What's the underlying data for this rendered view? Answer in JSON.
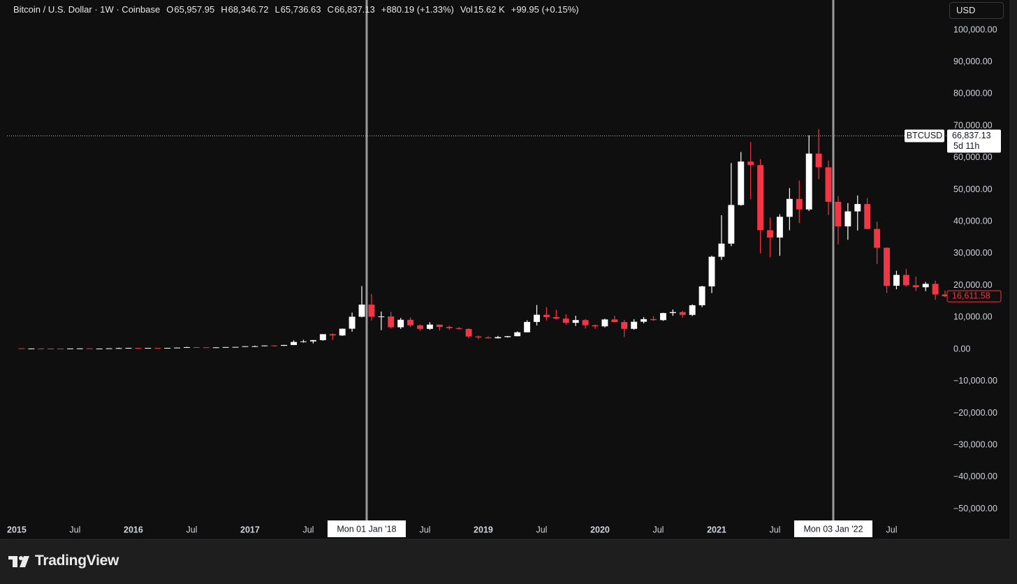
{
  "legend": {
    "symbol": "Bitcoin / U.S. Dollar · 1W · Coinbase",
    "items": [
      {
        "key": "O",
        "value": "65,957.95"
      },
      {
        "key": "H",
        "value": "68,346.72"
      },
      {
        "key": "L",
        "value": "65,736.63"
      },
      {
        "key": "C",
        "value": "66,837.13"
      }
    ],
    "change": "+880.19 (+1.33%)",
    "volume_key": "Vol",
    "volume": "15.62 K",
    "volume_change": "+99.95 (+0.15%)"
  },
  "currency_button": "USD",
  "footer": {
    "brand": "TradingView"
  },
  "chart_data": {
    "type": "candlestick",
    "x": [
      "2015-01",
      "2015-02",
      "2015-03",
      "2015-04",
      "2015-05",
      "2015-06",
      "2015-07",
      "2015-08",
      "2015-09",
      "2015-10",
      "2015-11",
      "2015-12",
      "2016-01",
      "2016-02",
      "2016-03",
      "2016-04",
      "2016-05",
      "2016-06",
      "2016-07",
      "2016-08",
      "2016-09",
      "2016-10",
      "2016-11",
      "2016-12",
      "2017-01",
      "2017-02",
      "2017-03",
      "2017-04",
      "2017-05",
      "2017-06",
      "2017-07",
      "2017-08",
      "2017-09",
      "2017-10",
      "2017-11",
      "2017-12",
      "2018-01",
      "2018-02",
      "2018-03",
      "2018-04",
      "2018-05",
      "2018-06",
      "2018-07",
      "2018-08",
      "2018-09",
      "2018-10",
      "2018-11",
      "2018-12",
      "2019-01",
      "2019-02",
      "2019-03",
      "2019-04",
      "2019-05",
      "2019-06",
      "2019-07",
      "2019-08",
      "2019-09",
      "2019-10",
      "2019-11",
      "2019-12",
      "2020-01",
      "2020-02",
      "2020-03",
      "2020-04",
      "2020-05",
      "2020-06",
      "2020-07",
      "2020-08",
      "2020-09",
      "2020-10",
      "2020-11",
      "2020-12",
      "2021-01",
      "2021-02",
      "2021-03",
      "2021-04",
      "2021-05",
      "2021-06",
      "2021-07",
      "2021-08",
      "2021-09",
      "2021-10",
      "2021-11",
      "2021-12",
      "2022-01",
      "2022-02",
      "2022-03",
      "2022-04",
      "2022-05",
      "2022-06",
      "2022-07",
      "2022-08",
      "2022-09",
      "2022-10",
      "2022-11",
      "2022-12"
    ],
    "open": [
      320,
      217,
      254,
      244,
      236,
      230,
      263,
      284,
      230,
      236,
      314,
      377,
      430,
      368,
      437,
      416,
      448,
      531,
      673,
      624,
      575,
      609,
      698,
      742,
      963,
      970,
      1190,
      1080,
      1350,
      2300,
      2480,
      2875,
      4740,
      4340,
      6450,
      10200,
      14000,
      10200,
      10300,
      6900,
      9250,
      7500,
      6400,
      7730,
      7010,
      6630,
      6370,
      4020,
      3740,
      3460,
      3820,
      4110,
      5330,
      8570,
      10820,
      10090,
      9620,
      8300,
      9150,
      7540,
      7190,
      9350,
      8540,
      6410,
      8630,
      9450,
      9140,
      11350,
      11660,
      10780,
      13800,
      19700,
      28990,
      33100,
      45200,
      58800,
      57700,
      37300,
      35000,
      41500,
      47100,
      43800,
      61300,
      57000,
      46200,
      38500,
      43200,
      45500,
      37700,
      31800,
      19900,
      23300,
      20050,
      19430,
      20500,
      17170
    ],
    "high": [
      330,
      270,
      300,
      260,
      250,
      265,
      320,
      285,
      245,
      330,
      500,
      465,
      460,
      440,
      440,
      470,
      550,
      780,
      700,
      620,
      620,
      720,
      760,
      980,
      1150,
      1200,
      1300,
      1380,
      2800,
      3000,
      2950,
      4700,
      5000,
      6500,
      11500,
      19800,
      17300,
      11800,
      11700,
      9800,
      10000,
      7800,
      8500,
      7760,
      7400,
      7000,
      6600,
      4300,
      4100,
      4200,
      4150,
      5600,
      9100,
      13880,
      13200,
      12350,
      10950,
      10500,
      9500,
      7750,
      9600,
      10500,
      9200,
      9450,
      10100,
      10380,
      11450,
      12480,
      12070,
      14100,
      19900,
      29300,
      41990,
      58350,
      61800,
      64900,
      59600,
      41300,
      42300,
      50500,
      52900,
      67000,
      69000,
      59100,
      48000,
      45800,
      48200,
      47400,
      40000,
      31950,
      24600,
      25200,
      22800,
      21100,
      21500,
      18400
    ],
    "low": [
      170,
      210,
      240,
      210,
      225,
      220,
      255,
      200,
      225,
      235,
      300,
      350,
      350,
      365,
      395,
      412,
      440,
      525,
      470,
      530,
      570,
      605,
      680,
      740,
      750,
      920,
      890,
      1060,
      1340,
      2100,
      1830,
      2700,
      2950,
      4200,
      5500,
      10000,
      9000,
      6000,
      6500,
      6400,
      7000,
      5750,
      6100,
      5880,
      6100,
      6200,
      3500,
      3150,
      3350,
      3390,
      3700,
      4080,
      5320,
      7450,
      9050,
      9320,
      7710,
      7300,
      6500,
      6430,
      6850,
      8450,
      3850,
      6150,
      8100,
      8900,
      8900,
      10500,
      9900,
      10400,
      13200,
      17600,
      28000,
      32300,
      45000,
      47000,
      30000,
      28800,
      29300,
      37300,
      39600,
      43300,
      53300,
      42000,
      32900,
      34300,
      37200,
      37600,
      26700,
      17600,
      18800,
      19600,
      18200,
      18200,
      15500,
      16300
    ],
    "close": [
      217,
      254,
      244,
      236,
      230,
      263,
      284,
      230,
      236,
      314,
      377,
      430,
      368,
      437,
      416,
      448,
      531,
      673,
      624,
      575,
      609,
      698,
      742,
      963,
      970,
      1190,
      1080,
      1350,
      2300,
      2480,
      2875,
      4740,
      4340,
      6450,
      10200,
      14000,
      10200,
      10300,
      6900,
      9250,
      7500,
      6400,
      7730,
      7010,
      6630,
      6370,
      4020,
      3740,
      3460,
      3820,
      4110,
      5330,
      8570,
      10820,
      10090,
      9620,
      8300,
      9150,
      7540,
      7190,
      9350,
      8540,
      6410,
      8630,
      9450,
      9140,
      11350,
      11660,
      10780,
      13800,
      19700,
      28990,
      33100,
      45200,
      58800,
      57700,
      37300,
      35000,
      41500,
      47100,
      43800,
      61300,
      57000,
      46200,
      38500,
      43200,
      45500,
      37700,
      31800,
      19900,
      23300,
      20050,
      19430,
      20500,
      17170,
      16611.58
    ],
    "up_color": "#ffffff",
    "down_color": "#f23645",
    "xlim": [
      "2014-12",
      "2023-01"
    ],
    "xticks": [
      {
        "value": "2015-01",
        "label": "2015"
      },
      {
        "value": "2015-07",
        "label": "Jul"
      },
      {
        "value": "2016-01",
        "label": "2016"
      },
      {
        "value": "2016-07",
        "label": "Jul"
      },
      {
        "value": "2017-01",
        "label": "2017"
      },
      {
        "value": "2017-07",
        "label": "Jul"
      },
      {
        "value": "2018-07",
        "label": "Jul"
      },
      {
        "value": "2019-01",
        "label": "2019"
      },
      {
        "value": "2019-07",
        "label": "Jul"
      },
      {
        "value": "2020-01",
        "label": "2020"
      },
      {
        "value": "2020-07",
        "label": "Jul"
      },
      {
        "value": "2021-01",
        "label": "2021"
      },
      {
        "value": "2021-07",
        "label": "Jul"
      },
      {
        "value": "2022-07",
        "label": "Jul"
      }
    ],
    "crosshairs": [
      {
        "value": "2018-01",
        "label": "Mon 01 Jan '18"
      },
      {
        "value": "2022-01",
        "label": "Mon 03 Jan '22"
      }
    ],
    "ylim": [
      -59500,
      109400
    ],
    "yticks": [
      {
        "value": -50000,
        "label": "−50,000.00"
      },
      {
        "value": -40000,
        "label": "−40,000.00"
      },
      {
        "value": -30000,
        "label": "−30,000.00"
      },
      {
        "value": -20000,
        "label": "−20,000.00"
      },
      {
        "value": -10000,
        "label": "−10,000.00"
      },
      {
        "value": 0,
        "label": "0.00"
      },
      {
        "value": 10000,
        "label": "10,000.00"
      },
      {
        "value": 20000,
        "label": "20,000.00"
      },
      {
        "value": 30000,
        "label": "30,000.00"
      },
      {
        "value": 40000,
        "label": "40,000.00"
      },
      {
        "value": 50000,
        "label": "50,000.00"
      },
      {
        "value": 60000,
        "label": "60,000.00"
      },
      {
        "value": 70000,
        "label": "70,000.00"
      },
      {
        "value": 80000,
        "label": "80,000.00"
      },
      {
        "value": 90000,
        "label": "90,000.00"
      },
      {
        "value": 100000,
        "label": "100,000.00"
      }
    ],
    "grid": false,
    "price_line": {
      "name": "BTCUSD",
      "value": 66837.13,
      "label": "66,837.13",
      "countdown": "5d 11h"
    },
    "last_price": {
      "value": 16611.58,
      "label": "16,611.58"
    }
  }
}
